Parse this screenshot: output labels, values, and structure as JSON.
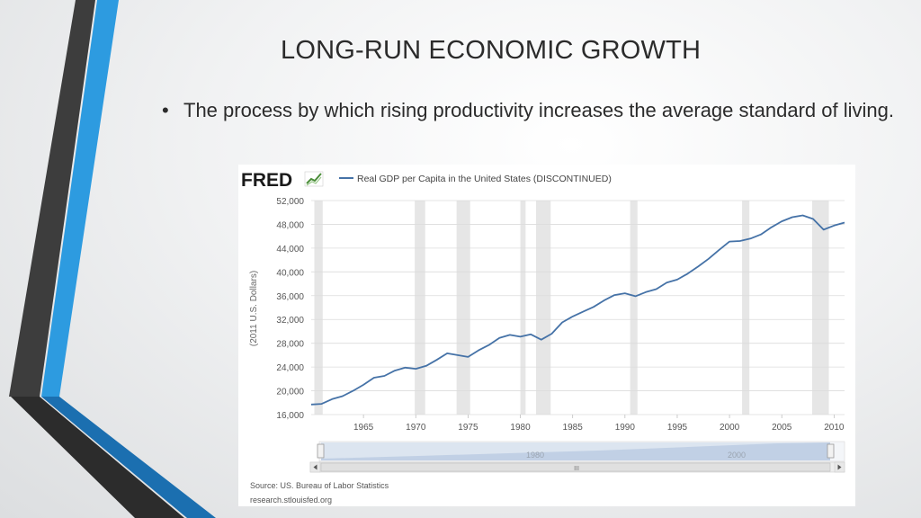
{
  "slide": {
    "title": "LONG-RUN ECONOMIC GROWTH",
    "bullet": "The process by which rising productivity increases the average standard of living."
  },
  "fred": {
    "logo_text": "FRED",
    "source": "Source: US. Bureau of Labor Statistics",
    "site": "research.stlouisfed.org",
    "navigator_labels": [
      "1980",
      "2000"
    ],
    "navigator_center_glyph": "III",
    "colors": {
      "line": "#4572a7",
      "recession": "#e6e6e6",
      "logo": "#1a1a1a"
    }
  },
  "chart_data": {
    "type": "line",
    "series": [
      {
        "name": "Real GDP per Capita in the United States (DISCONTINUED)",
        "x": [
          1960,
          1961,
          1962,
          1963,
          1964,
          1965,
          1966,
          1967,
          1968,
          1969,
          1970,
          1971,
          1972,
          1973,
          1974,
          1975,
          1976,
          1977,
          1978,
          1979,
          1980,
          1981,
          1982,
          1983,
          1984,
          1985,
          1986,
          1987,
          1988,
          1989,
          1990,
          1991,
          1992,
          1993,
          1994,
          1995,
          1996,
          1997,
          1998,
          1999,
          2000,
          2001,
          2002,
          2003,
          2004,
          2005,
          2006,
          2007,
          2008,
          2009,
          2010,
          2011
        ],
        "values": [
          17700,
          17800,
          18600,
          19100,
          20000,
          21000,
          22200,
          22500,
          23400,
          23900,
          23700,
          24200,
          25200,
          26300,
          26000,
          25700,
          26800,
          27700,
          28900,
          29400,
          29100,
          29500,
          28600,
          29600,
          31500,
          32500,
          33300,
          34100,
          35200,
          36100,
          36400,
          35900,
          36600,
          37100,
          38200,
          38700,
          39700,
          40900,
          42200,
          43700,
          45100,
          45200,
          45600,
          46300,
          47500,
          48500,
          49200,
          49500,
          48900,
          47100,
          47800,
          48300
        ]
      }
    ],
    "xlabel": "",
    "ylabel": "(2011 U.S. Dollars)",
    "x_ticks": [
      1965,
      1970,
      1975,
      1980,
      1985,
      1990,
      1995,
      2000,
      2005,
      2010
    ],
    "y_ticks": [
      16000,
      20000,
      24000,
      28000,
      32000,
      36000,
      40000,
      44000,
      48000,
      52000
    ],
    "y_tick_labels": [
      "16,000",
      "20,000",
      "24,000",
      "28,000",
      "32,000",
      "36,000",
      "40,000",
      "44,000",
      "48,000",
      "52,000"
    ],
    "xlim": [
      1960,
      2011
    ],
    "ylim": [
      16000,
      52000
    ],
    "grid": true,
    "legend_position": "top",
    "recessions": [
      [
        1960.3,
        1961.1
      ],
      [
        1969.9,
        1970.9
      ],
      [
        1973.9,
        1975.2
      ],
      [
        1980.0,
        1980.5
      ],
      [
        1981.5,
        1982.9
      ],
      [
        1990.5,
        1991.2
      ],
      [
        2001.2,
        2001.9
      ],
      [
        2007.9,
        2009.5
      ]
    ]
  }
}
